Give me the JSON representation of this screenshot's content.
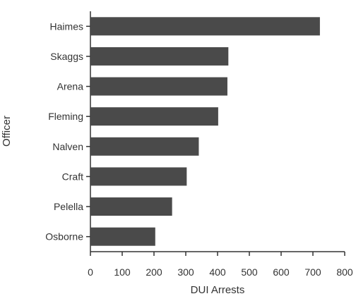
{
  "chart_data": {
    "type": "bar",
    "orientation": "horizontal",
    "categories": [
      "Haimes",
      "Skaggs",
      "Arena",
      "Fleming",
      "Nalven",
      "Craft",
      "Pelella",
      "Osborne"
    ],
    "values": [
      722,
      434,
      431,
      402,
      341,
      303,
      257,
      204
    ],
    "xlabel": "DUI Arrests",
    "ylabel": "Officer",
    "xlim": [
      0,
      800
    ],
    "xticks": [
      0,
      100,
      200,
      300,
      400,
      500,
      600,
      700,
      800
    ],
    "grid": false,
    "legend": "none",
    "bar_color": "#4a4a4a"
  }
}
